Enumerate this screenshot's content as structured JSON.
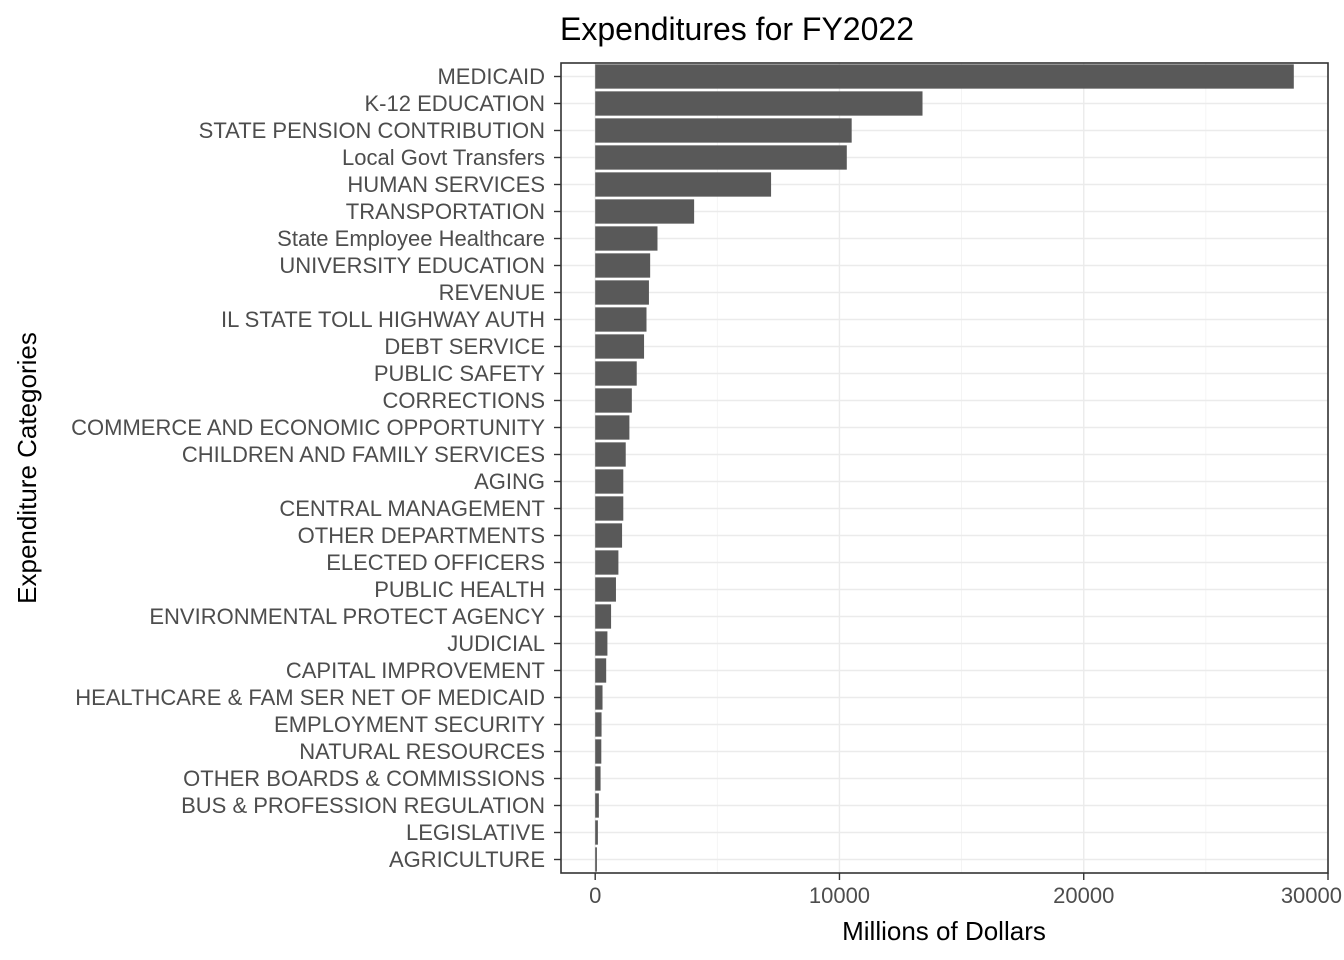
{
  "chart_data": {
    "type": "bar",
    "orientation": "horizontal",
    "title": "Expenditures for FY2022",
    "xlabel": "Millions of Dollars",
    "ylabel": "Expenditure Categories",
    "xlim": [
      -1400,
      30000
    ],
    "x_ticks": [
      0,
      10000,
      20000,
      30000
    ],
    "x_tick_labels": [
      "0",
      "10000",
      "20000",
      "30000"
    ],
    "grid": true,
    "legend": "none",
    "bar_color": "#595959",
    "categories": [
      "MEDICAID",
      "K-12 EDUCATION",
      "STATE PENSION CONTRIBUTION",
      "Local Govt Transfers",
      "HUMAN SERVICES",
      "TRANSPORTATION",
      "State Employee Healthcare",
      "UNIVERSITY EDUCATION",
      "REVENUE",
      "IL STATE TOLL HIGHWAY AUTH",
      "DEBT SERVICE",
      "PUBLIC SAFETY",
      "CORRECTIONS",
      "COMMERCE AND ECONOMIC OPPORTUNITY",
      "CHILDREN AND FAMILY SERVICES",
      "AGING",
      "CENTRAL MANAGEMENT",
      "OTHER DEPARTMENTS",
      "ELECTED OFFICERS",
      "PUBLIC HEALTH",
      "ENVIRONMENTAL PROTECT AGENCY",
      "JUDICIAL",
      "CAPITAL IMPROVEMENT",
      "HEALTHCARE & FAM SER NET OF MEDICAID",
      "EMPLOYMENT SECURITY",
      "NATURAL RESOURCES",
      "OTHER BOARDS & COMMISSIONS",
      "BUS & PROFESSION REGULATION",
      "LEGISLATIVE",
      "AGRICULTURE"
    ],
    "values": [
      28600,
      13400,
      10500,
      10300,
      7200,
      4050,
      2550,
      2250,
      2200,
      2100,
      2000,
      1700,
      1500,
      1400,
      1250,
      1150,
      1150,
      1100,
      950,
      850,
      650,
      500,
      450,
      300,
      260,
      250,
      220,
      150,
      110,
      70
    ]
  }
}
